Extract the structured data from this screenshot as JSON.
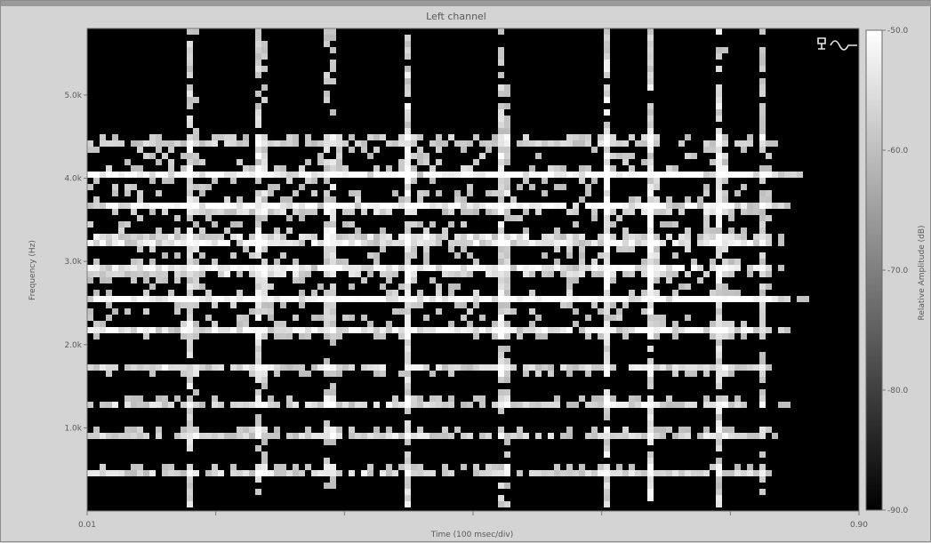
{
  "chart_data": {
    "type": "heatmap",
    "title": "Left channel",
    "xlabel": "Time (100 msec/div)",
    "ylabel": "Frequency (Hz)",
    "colorbar_label": "Relative Amplitude (dB)",
    "x_range": [
      0.01,
      0.9
    ],
    "x_tick_labels": [
      {
        "value": 0.01,
        "label": "0.01"
      },
      {
        "value": 0.9,
        "label": "0.90"
      }
    ],
    "y_range": [
      0,
      5800
    ],
    "y_ticks": [
      {
        "value": 1000,
        "label": "1.0k"
      },
      {
        "value": 2000,
        "label": "2.0k"
      },
      {
        "value": 3000,
        "label": "3.0k"
      },
      {
        "value": 4000,
        "label": "4.0k"
      },
      {
        "value": 5000,
        "label": "5.0k"
      }
    ],
    "colorbar_range": [
      -90,
      -50
    ],
    "colorbar_ticks": [
      {
        "value": -50,
        "label": "-50.0"
      },
      {
        "value": -60,
        "label": "-60.0"
      },
      {
        "value": -70,
        "label": "-70.0"
      },
      {
        "value": -80,
        "label": "-80.0"
      },
      {
        "value": -90,
        "label": "-90.0"
      }
    ],
    "colormap": [
      "#000000",
      "#ffffff"
    ],
    "harmonics_hz": [
      480,
      930,
      1300,
      1700,
      2150,
      2550,
      2900,
      3250,
      3650,
      4050,
      4450
    ],
    "vertical_streaks_s": [
      0.13,
      0.21,
      0.29,
      0.38,
      0.49,
      0.61,
      0.66,
      0.74,
      0.79
    ]
  },
  "icon": "spectrum-analyzer-icon"
}
